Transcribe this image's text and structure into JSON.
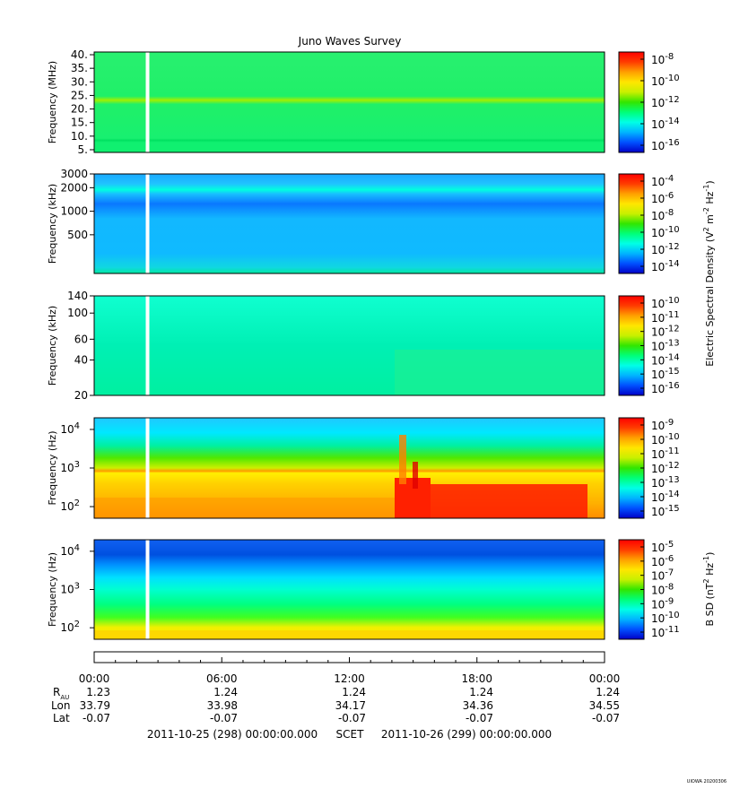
{
  "title": "Juno Waves Survey",
  "colors": {
    "colormap": [
      "#0000c8",
      "#0050ff",
      "#00b4ff",
      "#00ffe6",
      "#00ff78",
      "#32e600",
      "#c8f000",
      "#ffe600",
      "#ffa000",
      "#ff3c00",
      "#ff0000"
    ],
    "gap": "#ffffff",
    "frame": "#000000"
  },
  "panels": [
    {
      "ylabel": "Frequency (MHz)",
      "yscale": "linear",
      "ylim": [
        4,
        41
      ],
      "ytick_values": [
        5,
        10,
        15,
        20,
        25,
        30,
        35,
        40
      ],
      "ytick_labels": [
        "5.",
        "10.",
        "15.",
        "20.",
        "25.",
        "30.",
        "35.",
        "40."
      ],
      "colorbar_ticks": [
        "10",
        "10",
        "10",
        "10",
        "10"
      ],
      "colorbar_exps": [
        "-8",
        "-10",
        "-12",
        "-14",
        "-16"
      ]
    },
    {
      "ylabel": "Frequency (kHz)",
      "yscale": "log",
      "ylim": [
        160,
        3000
      ],
      "ytick_values": [
        3000,
        2000,
        1000,
        500
      ],
      "ytick_labels": [
        "3000",
        "2000",
        "1000",
        "500"
      ],
      "colorbar_ticks": [
        "10",
        "10",
        "10",
        "10",
        "10",
        "10"
      ],
      "colorbar_exps": [
        "-4",
        "-6",
        "-8",
        "-10",
        "-12",
        "-14"
      ]
    },
    {
      "ylabel": "Frequency (kHz)",
      "yscale": "log",
      "ylim": [
        20,
        140
      ],
      "ytick_values": [
        140,
        100,
        60,
        40,
        20
      ],
      "ytick_labels": [
        "140",
        "100",
        "60",
        "40",
        "20"
      ],
      "colorbar_ticks": [
        "10",
        "10",
        "10",
        "10",
        "10",
        "10",
        "10"
      ],
      "colorbar_exps": [
        "-10",
        "-11",
        "-12",
        "-13",
        "-14",
        "-15",
        "-16"
      ]
    },
    {
      "ylabel": "Frequency (Hz)",
      "yscale": "log",
      "ylim": [
        50,
        20000
      ],
      "ytick_values": [
        10000,
        1000,
        100
      ],
      "ytick_bases": [
        "10",
        "10",
        "10"
      ],
      "ytick_exps": [
        "4",
        "3",
        "2"
      ],
      "colorbar_ticks": [
        "10",
        "10",
        "10",
        "10",
        "10",
        "10",
        "10"
      ],
      "colorbar_exps": [
        "-9",
        "-10",
        "-11",
        "-12",
        "-13",
        "-14",
        "-15"
      ]
    },
    {
      "ylabel": "Frequency (Hz)",
      "yscale": "log",
      "ylim": [
        50,
        20000
      ],
      "ytick_values": [
        10000,
        1000,
        100
      ],
      "ytick_bases": [
        "10",
        "10",
        "10"
      ],
      "ytick_exps": [
        "4",
        "3",
        "2"
      ],
      "colorbar_ticks": [
        "10",
        "10",
        "10",
        "10",
        "10",
        "10",
        "10"
      ],
      "colorbar_exps": [
        "-5",
        "-6",
        "-7",
        "-8",
        "-9",
        "-10",
        "-11"
      ]
    }
  ],
  "colorbar_labels": {
    "electric": "Electric Spectral Density (V",
    "electric_exp1": "2",
    "electric_mid": " m",
    "electric_exp2": "-2",
    "electric_mid2": " Hz",
    "electric_exp3": "-1",
    "electric_end": ")",
    "magnetic": "B SD (nT",
    "magnetic_exp1": "2",
    "magnetic_mid": " Hz",
    "magnetic_exp2": "-1",
    "magnetic_end": ")"
  },
  "x_axis": {
    "ticks": [
      "00:00",
      "06:00",
      "12:00",
      "18:00",
      "00:00"
    ],
    "row_labels": {
      "rau": "R",
      "rau_sub": "AU",
      "lon": "Lon",
      "lat": "Lat"
    },
    "rau": [
      "1.23",
      "1.24",
      "1.24",
      "1.24",
      "1.24"
    ],
    "lon": [
      "33.79",
      "33.98",
      "34.17",
      "34.36",
      "34.55"
    ],
    "lat": [
      "-0.07",
      "-0.07",
      "-0.07",
      "-0.07",
      "-0.07"
    ],
    "footer_start": "2011-10-25 (298) 00:00:00.000",
    "footer_mid": "SCET",
    "footer_end": "2011-10-26 (299) 00:00:00.000"
  },
  "chart_data": {
    "type": "heatmap",
    "title": "Juno Waves Survey",
    "x_range": [
      "2011-10-25 00:00",
      "2011-10-26 00:00"
    ],
    "x_tick_labels": [
      "00:00",
      "06:00",
      "12:00",
      "18:00",
      "00:00"
    ],
    "data_gap_time": "02:30",
    "series": [
      {
        "ylabel": "Frequency (MHz)",
        "ylim": [
          4,
          41
        ],
        "colorbar_range_exp": [
          -16,
          -8
        ]
      },
      {
        "ylabel": "Frequency (kHz)",
        "ylim": [
          160,
          3000
        ],
        "yscale": "log",
        "colorbar_range_exp": [
          -14,
          -4
        ]
      },
      {
        "ylabel": "Frequency (kHz)",
        "ylim": [
          20,
          140
        ],
        "yscale": "log",
        "colorbar_range_exp": [
          -16,
          -10
        ]
      },
      {
        "ylabel": "Frequency (Hz)",
        "ylim": [
          50,
          20000
        ],
        "yscale": "log",
        "colorbar_range_exp": [
          -15,
          -9
        ]
      },
      {
        "ylabel": "Frequency (Hz)",
        "ylim": [
          50,
          20000
        ],
        "yscale": "log",
        "colorbar_range_exp": [
          -11,
          -5
        ]
      }
    ]
  },
  "watermark": "UIOWA 20200306"
}
